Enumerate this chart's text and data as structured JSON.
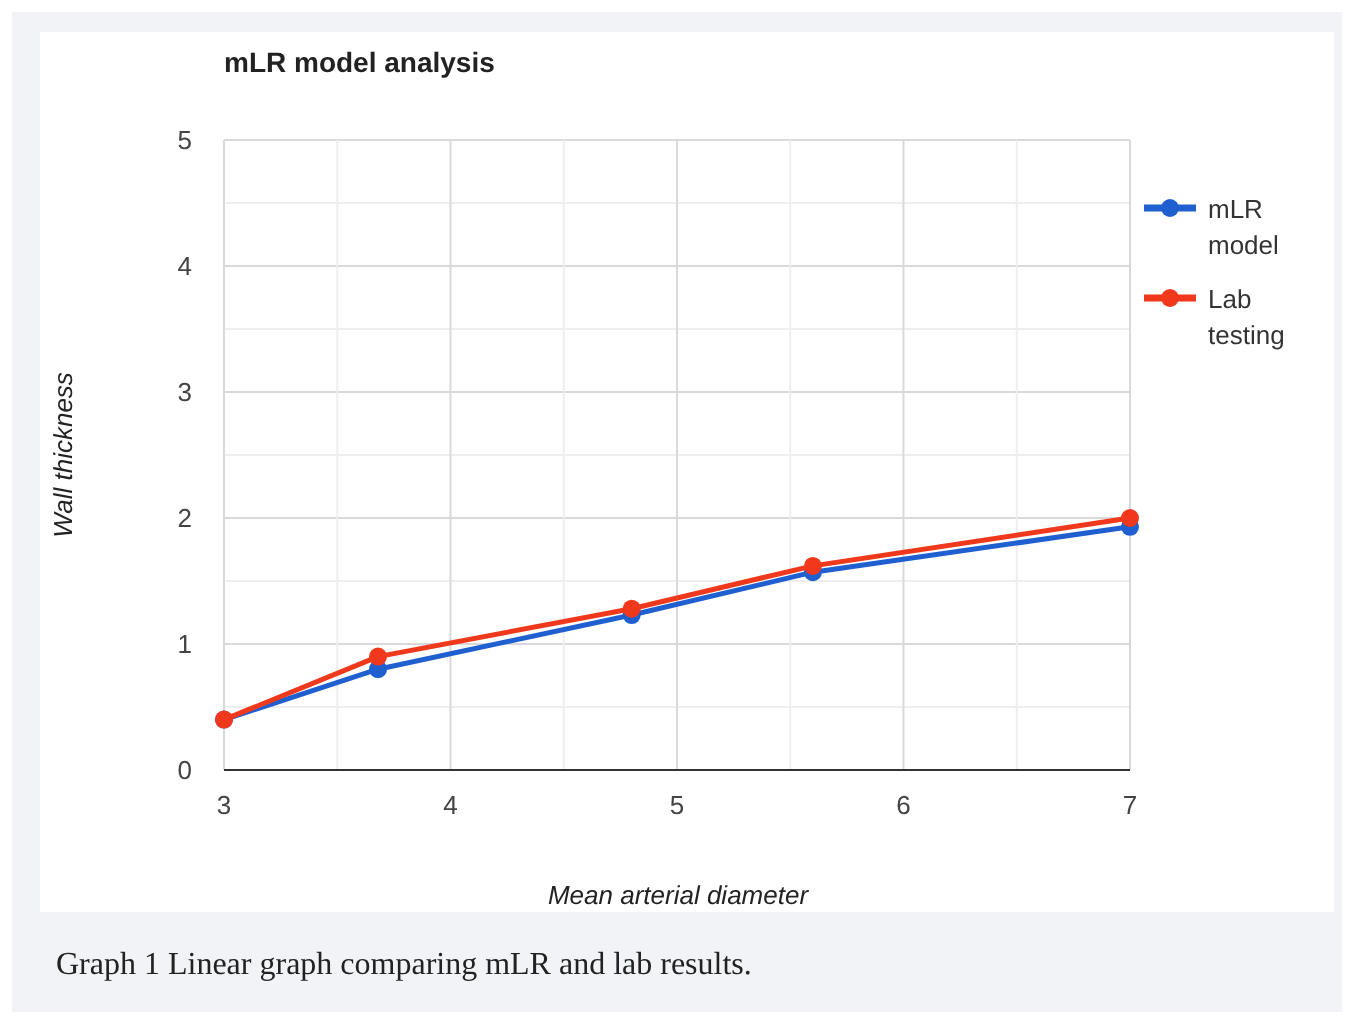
{
  "chart_data": {
    "type": "line",
    "title": "mLR model analysis",
    "xlabel": "Mean arterial diameter",
    "ylabel": "Wall thickness",
    "x": [
      3,
      3.68,
      4.8,
      5.6,
      7
    ],
    "series": [
      {
        "name": "mLR model",
        "color": "#1f5fd0",
        "values": [
          0.4,
          0.8,
          1.23,
          1.57,
          1.93
        ]
      },
      {
        "name": "Lab testing",
        "color": "#f0391c",
        "values": [
          0.4,
          0.9,
          1.28,
          1.62,
          2.0
        ]
      }
    ],
    "xlim": [
      3,
      7
    ],
    "xticks": [
      3,
      {
        "value": 3.5,
        "label": null
      },
      4,
      {
        "value": 4.5,
        "label": null
      },
      5,
      {
        "value": 5.5,
        "label": null
      },
      6,
      {
        "value": 6.5,
        "label": null
      },
      7
    ],
    "ylim": [
      0,
      5
    ],
    "yticks": [
      0,
      {
        "value": 0.5,
        "label": null
      },
      1,
      {
        "value": 1.5,
        "label": null
      },
      2,
      {
        "value": 2.5,
        "label": null
      },
      3,
      {
        "value": 3.5,
        "label": null
      },
      4,
      {
        "value": 4.5,
        "label": null
      },
      5
    ],
    "grid": true,
    "legend": "right",
    "marker": "circle",
    "line_style": "solid",
    "annotations": [
      "Graph 1 Linear graph comparing mLR and lab results."
    ]
  }
}
